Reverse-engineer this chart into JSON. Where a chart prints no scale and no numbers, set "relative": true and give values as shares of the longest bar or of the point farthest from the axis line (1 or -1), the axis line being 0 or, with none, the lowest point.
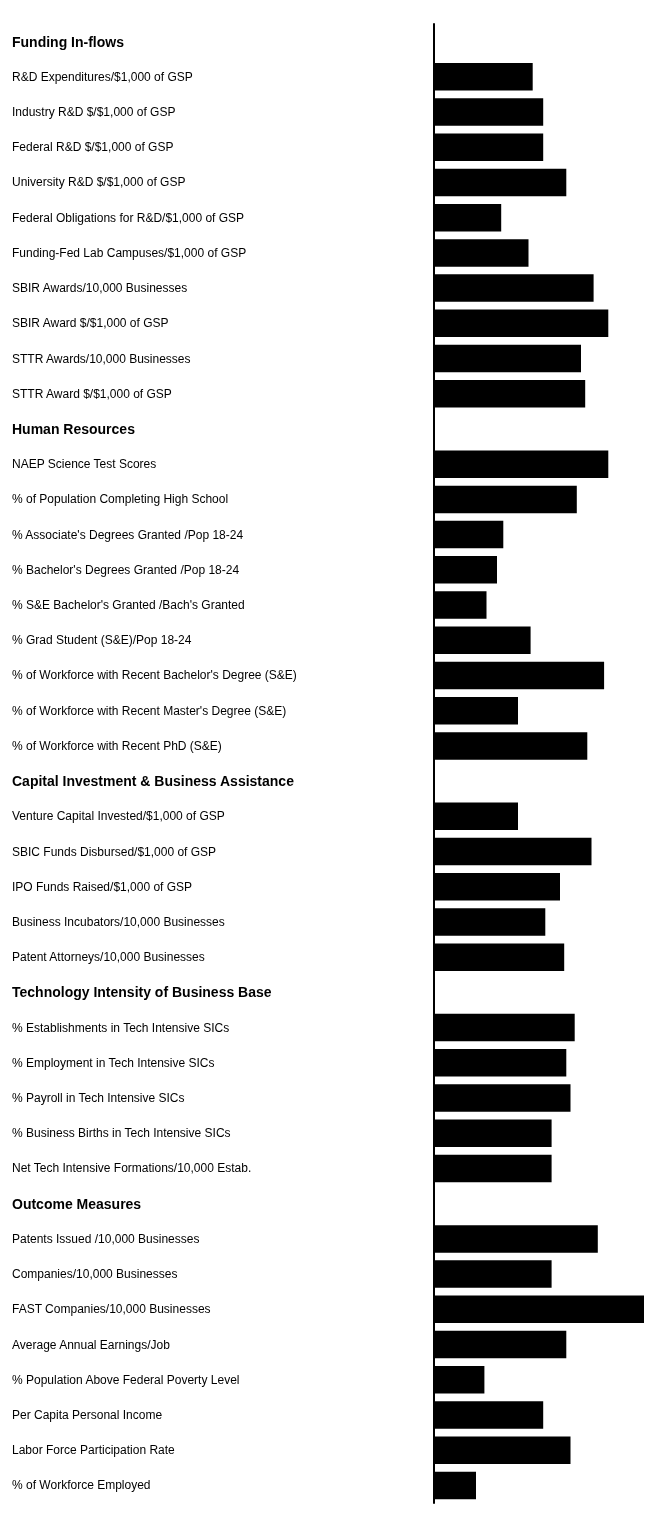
{
  "chart_data": {
    "type": "bar",
    "orientation": "horizontal",
    "relative": true,
    "color": "#000000",
    "categories": [
      "Funding In-flows",
      "R&D Expenditures/$1,000 of GSP",
      "Industry R&D $/$1,000 of GSP",
      "Federal R&D $/$1,000 of GSP",
      "University R&D $/$1,000 of GSP",
      "Federal Obligations for R&D/$1,000 of GSP",
      "Funding-Fed Lab Campuses/$1,000 of GSP",
      "SBIR Awards/10,000 Businesses",
      "SBIR Award $/$1,000 of GSP",
      "STTR Awards/10,000 Businesses",
      "STTR Award $/$1,000 of GSP",
      "Human Resources",
      "NAEP Science Test Scores",
      "% of Population Completing High School",
      "% Associate's Degrees Granted /Pop 18-24",
      "% Bachelor's Degrees Granted /Pop 18-24",
      "% S&E Bachelor's Granted /Bach's Granted",
      "% Grad Student (S&E)/Pop 18-24",
      "% of Workforce with Recent Bachelor's Degree (S&E)",
      "% of Workforce with Recent Master's Degree (S&E)",
      "% of Workforce with Recent PhD (S&E)",
      "Capital Investment & Business Assistance",
      "Venture Capital Invested/$1,000 of GSP",
      "SBIC Funds Disbursed/$1,000 of GSP",
      "IPO Funds Raised/$1,000 of GSP",
      "Business Incubators/10,000 Businesses",
      "Patent Attorneys/10,000 Businesses",
      "Technology Intensity of Business Base",
      "% Establishments in Tech Intensive SICs",
      "% Employment in Tech Intensive SICs",
      "% Payroll in Tech Intensive SICs",
      "% Business Births in Tech Intensive SICs",
      "Net Tech Intensive Formations/10,000 Estab.",
      "Outcome Measures",
      "Patents Issued /10,000 Businesses",
      "Companies/10,000 Businesses",
      "FAST Companies/10,000 Businesses",
      "Average Annual Earnings/Job",
      "% Population Above Federal Poverty Level",
      "Per Capita Personal Income",
      "Labor Force Participation Rate",
      "% of Workforce Employed"
    ],
    "values": [
      null,
      0.47,
      0.52,
      0.52,
      0.63,
      0.32,
      0.45,
      0.76,
      0.83,
      0.7,
      0.72,
      null,
      0.83,
      0.68,
      0.33,
      0.3,
      0.25,
      0.46,
      0.81,
      0.4,
      0.73,
      null,
      0.4,
      0.75,
      0.6,
      0.53,
      0.62,
      null,
      0.67,
      0.63,
      0.65,
      0.56,
      0.56,
      null,
      0.78,
      0.56,
      1,
      0.63,
      0.24,
      0.52,
      0.65,
      0.2
    ]
  }
}
